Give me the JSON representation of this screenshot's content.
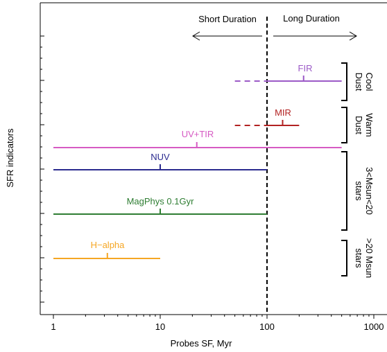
{
  "chart_data": {
    "type": "line",
    "xlabel": "Probes SF, Myr",
    "ylabel": "SFR indicators",
    "x_scale": "log",
    "xlim": [
      0.75,
      1000
    ],
    "x_ticks": [
      {
        "value": 1,
        "label": "1"
      },
      {
        "value": 10,
        "label": "10"
      },
      {
        "value": 100,
        "label": "100"
      },
      {
        "value": 1000,
        "label": "1000"
      }
    ],
    "divider": {
      "x": 100,
      "style": "dashed"
    },
    "regions": [
      {
        "label": "Short Duration",
        "arrow": "left"
      },
      {
        "label": "Long Duration",
        "arrow": "right"
      }
    ],
    "series": [
      {
        "name": "FIR",
        "color": "#9b59c7",
        "x_min": 100,
        "x_max": 500,
        "x_mark": 220,
        "dashed_from": 50
      },
      {
        "name": "MIR",
        "color": "#b22222",
        "x_min": 100,
        "x_max": 200,
        "x_mark": 140,
        "dashed_from": 50
      },
      {
        "name": "UV+TIR",
        "color": "#d65ac3",
        "x_min": 1,
        "x_max": 500,
        "x_mark": 22
      },
      {
        "name": "NUV",
        "color": "#2b2b8f",
        "x_min": 1,
        "x_max": 100,
        "x_mark": 10
      },
      {
        "name": "MagPhys 0.1Gyr",
        "color": "#2e7d32",
        "x_min": 1,
        "x_max": 100,
        "x_mark": 10
      },
      {
        "name": "H−alpha",
        "color": "#f5a623",
        "x_min": 1,
        "x_max": 10,
        "x_mark": 3.2
      }
    ],
    "groups": [
      {
        "label_lines": [
          "Cool",
          "Dust"
        ],
        "members": [
          "FIR"
        ]
      },
      {
        "label_lines": [
          "Warm",
          "Dust"
        ],
        "members": [
          "MIR"
        ]
      },
      {
        "label_lines": [
          "3<Msun<20",
          "stars"
        ],
        "members": [
          "UV+TIR",
          "NUV",
          "MagPhys 0.1Gyr"
        ]
      },
      {
        "label_lines": [
          ">20 Msun",
          "stars"
        ],
        "members": [
          "H−alpha"
        ]
      }
    ]
  }
}
